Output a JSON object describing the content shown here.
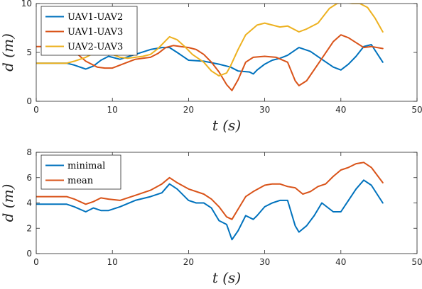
{
  "chart_data": [
    {
      "type": "line",
      "xlabel": "t (s)",
      "ylabel": "d (m)",
      "xlim": [
        0,
        50
      ],
      "ylim": [
        0,
        10
      ],
      "xticks": [
        "0",
        "10",
        "20",
        "30",
        "40",
        "50"
      ],
      "yticks": [
        "0",
        "5",
        "10"
      ],
      "grid": false,
      "legend_position": "top-left",
      "series": [
        {
          "name": "UAV1-UAV2",
          "color": "#0072BD",
          "x": [
            0,
            4,
            5,
            6.5,
            7.5,
            8.5,
            9.5,
            11,
            13,
            15,
            16.5,
            17.5,
            18.5,
            20,
            22,
            24,
            25.5,
            26.5,
            28,
            28.5,
            29,
            30,
            31,
            32,
            33,
            34.5,
            36,
            37.5,
            39,
            40,
            41,
            42,
            43,
            44,
            45.5
          ],
          "y": [
            3.9,
            3.9,
            3.7,
            3.3,
            3.6,
            4.2,
            4.6,
            4.3,
            4.8,
            5.3,
            5.5,
            5.5,
            5.0,
            4.2,
            4.1,
            3.8,
            3.5,
            3.1,
            3.0,
            2.8,
            3.2,
            3.8,
            4.2,
            4.4,
            4.7,
            5.5,
            5.1,
            4.3,
            3.5,
            3.2,
            3.8,
            4.6,
            5.6,
            5.8,
            4.0
          ]
        },
        {
          "name": "UAV1-UAV3",
          "color": "#D95319",
          "x": [
            0,
            4,
            5,
            6.5,
            8,
            9,
            10,
            11,
            12,
            13,
            14,
            15,
            16,
            17,
            18,
            19,
            20,
            21,
            22,
            23,
            24,
            25,
            25.7,
            26.5,
            27.5,
            28.5,
            30,
            31.5,
            33,
            34,
            34.5,
            35.5,
            37,
            39,
            40,
            41,
            42,
            43,
            44,
            45.5
          ],
          "y": [
            5.6,
            5.6,
            5.1,
            4.1,
            3.5,
            3.4,
            3.4,
            3.7,
            4.0,
            4.3,
            4.4,
            4.5,
            4.9,
            5.5,
            5.7,
            5.6,
            5.5,
            5.3,
            4.8,
            4.0,
            3.0,
            1.7,
            1.1,
            2.2,
            4.0,
            4.5,
            4.6,
            4.5,
            4.0,
            2.1,
            1.6,
            2.1,
            3.8,
            6.1,
            6.8,
            6.5,
            6.0,
            5.5,
            5.6,
            5.4
          ]
        },
        {
          "name": "UAV2-UAV3",
          "color": "#EDB120",
          "x": [
            0,
            4,
            5,
            6.5,
            7.5,
            8.5,
            10,
            11,
            12,
            13,
            14,
            15,
            16,
            17,
            17.5,
            18.5,
            19.5,
            20.5,
            22,
            23,
            24,
            25,
            25.5,
            26.5,
            27.5,
            29,
            30,
            31,
            32,
            33,
            34.5,
            35.5,
            37,
            38.5,
            39.5,
            40.5,
            41.5,
            42.5,
            43.5,
            44.5,
            45.5
          ],
          "y": [
            3.9,
            3.9,
            4.1,
            4.5,
            4.9,
            5.0,
            4.8,
            4.5,
            4.4,
            4.5,
            4.6,
            4.8,
            5.4,
            6.2,
            6.6,
            6.3,
            5.6,
            4.8,
            4.0,
            3.1,
            2.6,
            2.9,
            3.6,
            5.3,
            6.8,
            7.8,
            8.0,
            7.8,
            7.6,
            7.7,
            7.1,
            7.4,
            8.0,
            9.5,
            10.0,
            10.1,
            10.0,
            10.0,
            9.6,
            8.5,
            7.1
          ]
        }
      ]
    },
    {
      "type": "line",
      "xlabel": "t (s)",
      "ylabel": "d (m)",
      "xlim": [
        0,
        50
      ],
      "ylim": [
        0,
        8
      ],
      "xticks": [
        "0",
        "10",
        "20",
        "30",
        "40",
        "50"
      ],
      "yticks": [
        "0",
        "2",
        "4",
        "6",
        "8"
      ],
      "grid": false,
      "legend_position": "top-left",
      "series": [
        {
          "name": "minimal",
          "color": "#0072BD",
          "x": [
            0,
            4,
            5,
            6.5,
            7.5,
            8.5,
            9.5,
            11,
            13,
            15,
            16.5,
            17.5,
            18.5,
            20,
            21,
            22,
            23,
            24,
            25,
            25.7,
            26.5,
            27.5,
            28.5,
            29,
            30,
            31,
            32,
            33,
            34,
            34.5,
            35.5,
            36.5,
            37.5,
            39,
            40,
            41,
            42,
            43,
            44,
            45.5
          ],
          "y": [
            3.9,
            3.9,
            3.7,
            3.3,
            3.6,
            3.4,
            3.4,
            3.7,
            4.2,
            4.5,
            4.8,
            5.5,
            5.1,
            4.2,
            4.0,
            4.0,
            3.6,
            2.6,
            2.3,
            1.1,
            1.8,
            3.0,
            2.7,
            3.0,
            3.7,
            4.0,
            4.2,
            4.2,
            2.2,
            1.7,
            2.2,
            3.0,
            4.0,
            3.3,
            3.3,
            4.2,
            5.1,
            5.8,
            5.4,
            4.0
          ]
        },
        {
          "name": "mean",
          "color": "#D95319",
          "x": [
            0,
            4,
            5,
            6.5,
            7.5,
            8.5,
            9.5,
            11,
            13,
            15,
            16.5,
            17.5,
            18.5,
            20,
            22,
            23,
            24,
            25,
            25.7,
            26.5,
            27.5,
            28.5,
            30,
            31,
            32,
            33,
            34,
            35,
            36,
            37,
            38,
            39,
            40,
            41,
            42,
            43,
            44,
            45.5
          ],
          "y": [
            4.5,
            4.5,
            4.3,
            3.9,
            4.1,
            4.4,
            4.3,
            4.2,
            4.6,
            5.0,
            5.5,
            6.0,
            5.6,
            5.1,
            4.7,
            4.3,
            3.7,
            2.9,
            2.7,
            3.5,
            4.5,
            4.9,
            5.4,
            5.5,
            5.5,
            5.3,
            5.2,
            4.7,
            4.9,
            5.3,
            5.5,
            6.1,
            6.6,
            6.8,
            7.1,
            7.2,
            6.8,
            5.6
          ]
        }
      ]
    }
  ]
}
